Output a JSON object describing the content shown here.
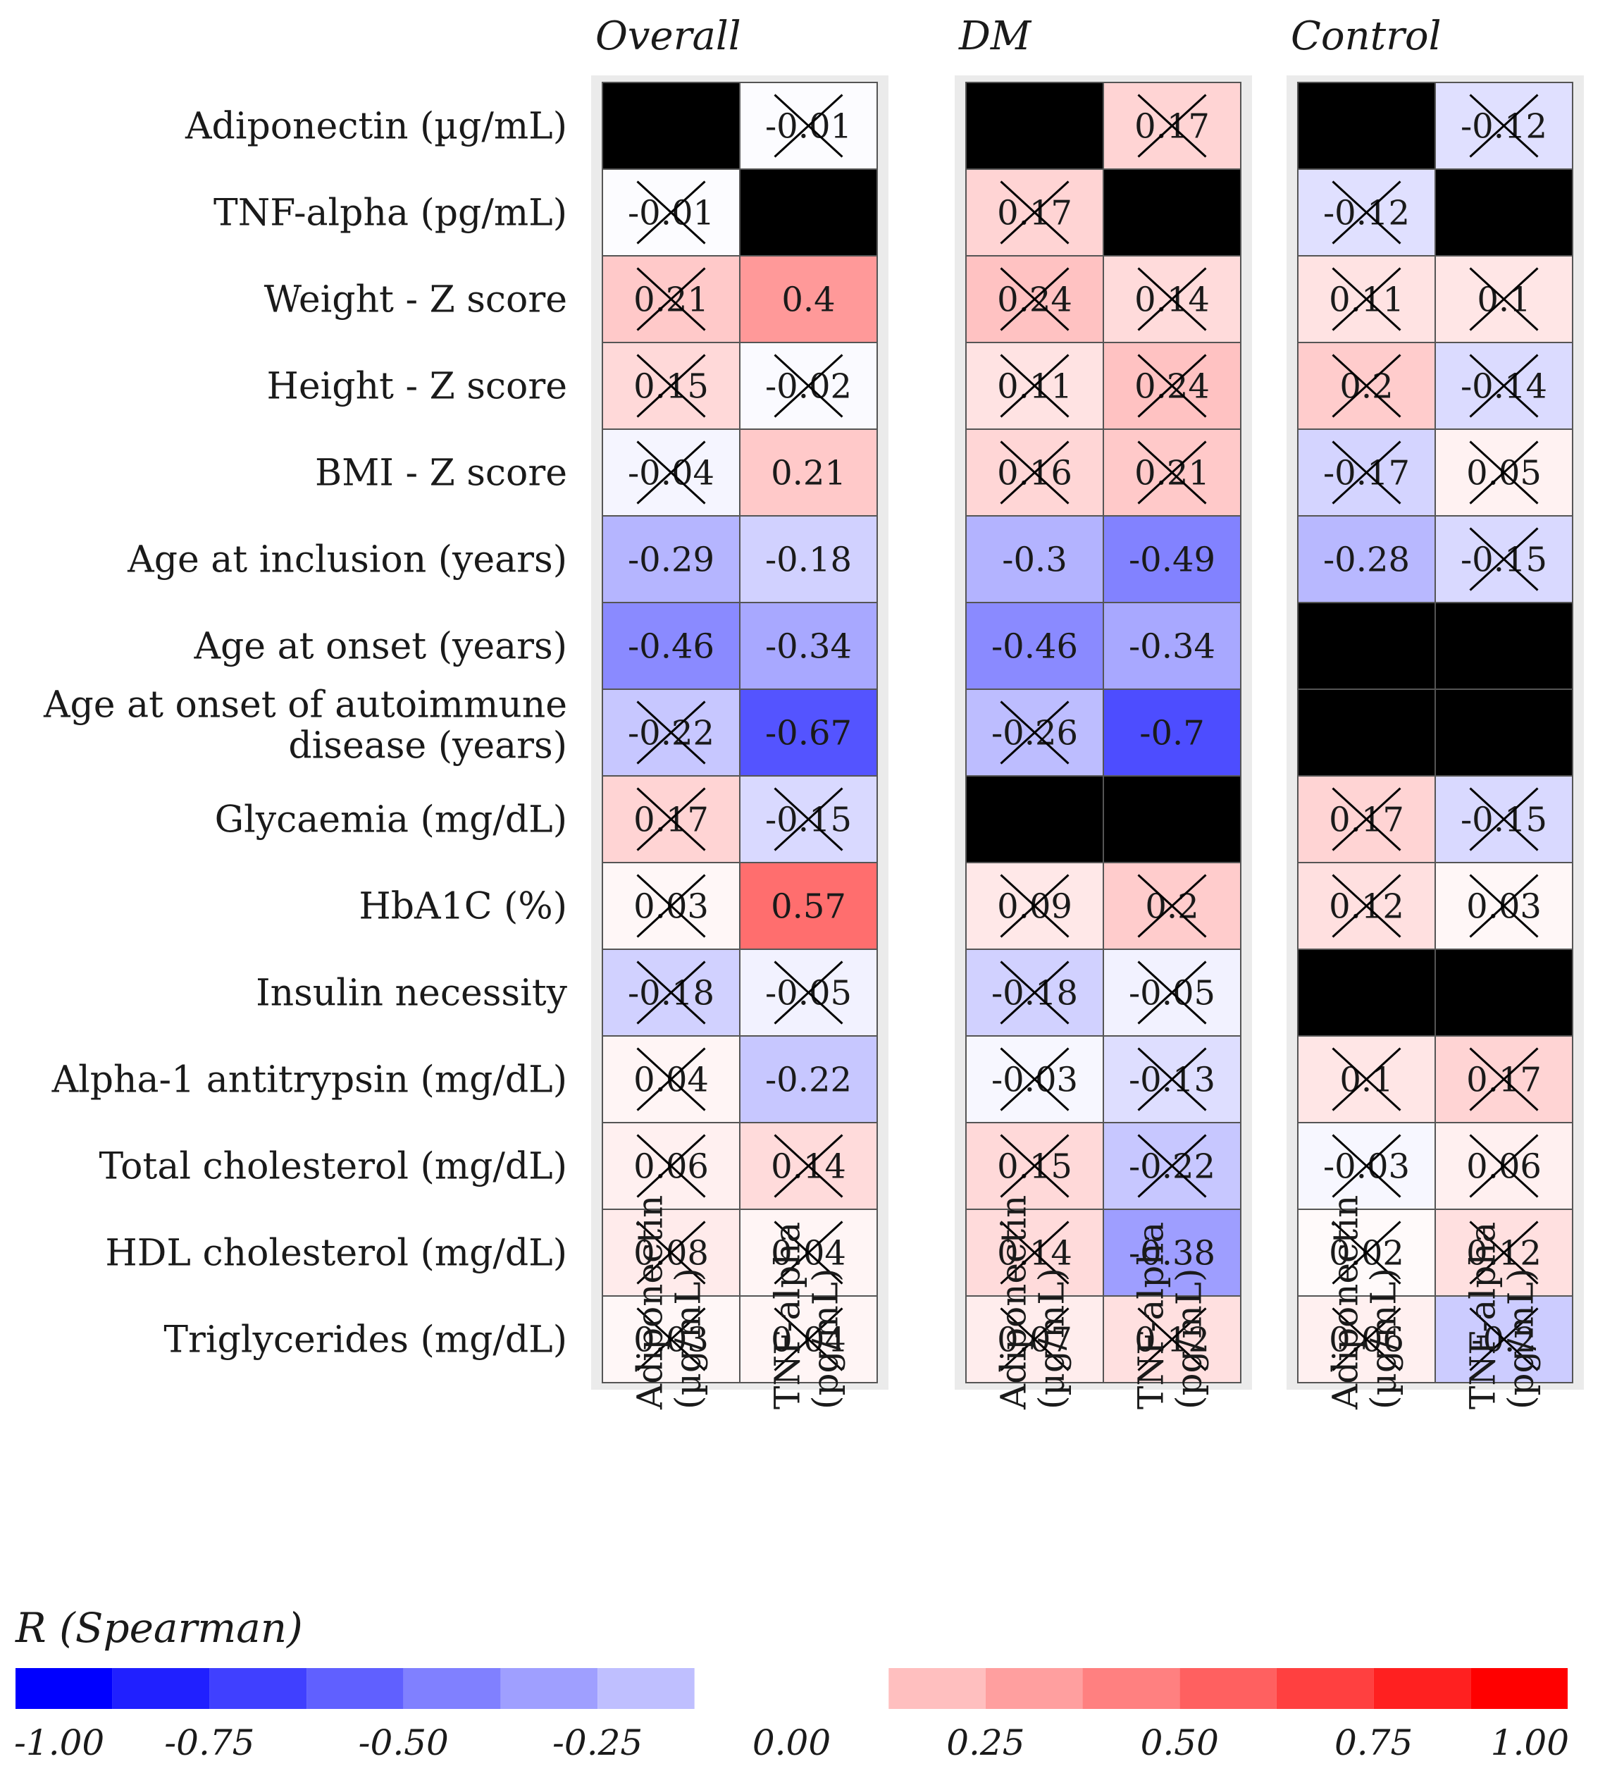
{
  "chart_data": {
    "type": "heatmap",
    "legend_title": "R (Spearman)",
    "legend_ticks": [
      "-1.00",
      "-0.75",
      "-0.50",
      "-0.25",
      "0.00",
      "0.25",
      "0.50",
      "0.75",
      "1.00"
    ],
    "legend_range": [
      -1,
      1
    ],
    "legend_placement": "bottom",
    "color_scale": {
      "negative": "#0000ff",
      "zero": "#ffffff",
      "positive": "#ff0000"
    },
    "missing_color": "#000000",
    "panel_background": "#ebebeb",
    "rows": [
      "Adiponectin (µg/mL)",
      "TNF-alpha (pg/mL)",
      "Weight - Z score",
      "Height - Z score",
      "BMI - Z score",
      "Age at inclusion (years)",
      "Age at onset (years)",
      [
        "Age at onset of autoimmune",
        "disease (years)"
      ],
      "Glycaemia (mg/dL)",
      "HbA1C (%)",
      "Insulin necessity",
      "Alpha-1 antitrypsin (mg/dL)",
      "Total cholesterol (mg/dL)",
      "HDL cholesterol (mg/dL)",
      "Triglycerides (mg/dL)"
    ],
    "columns": [
      [
        "Adiponectin",
        "(µg/mL)"
      ],
      [
        "TNF-alpha",
        "(pg/mL)"
      ]
    ],
    "panels": [
      {
        "name": "Overall",
        "cells": [
          [
            null,
            {
              "r": -0.01,
              "ns": true
            }
          ],
          [
            {
              "r": -0.01,
              "ns": true
            },
            null
          ],
          [
            {
              "r": 0.21,
              "ns": true
            },
            {
              "r": 0.4,
              "ns": false
            }
          ],
          [
            {
              "r": 0.15,
              "ns": true
            },
            {
              "r": -0.02,
              "ns": true
            }
          ],
          [
            {
              "r": -0.04,
              "ns": true
            },
            {
              "r": 0.21,
              "ns": false
            }
          ],
          [
            {
              "r": -0.29,
              "ns": false
            },
            {
              "r": -0.18,
              "ns": false
            }
          ],
          [
            {
              "r": -0.46,
              "ns": false
            },
            {
              "r": -0.34,
              "ns": false
            }
          ],
          [
            {
              "r": -0.22,
              "ns": true
            },
            {
              "r": -0.67,
              "ns": false
            }
          ],
          [
            {
              "r": 0.17,
              "ns": true
            },
            {
              "r": -0.15,
              "ns": true
            }
          ],
          [
            {
              "r": 0.03,
              "ns": true
            },
            {
              "r": 0.57,
              "ns": false
            }
          ],
          [
            {
              "r": -0.18,
              "ns": true
            },
            {
              "r": -0.05,
              "ns": true
            }
          ],
          [
            {
              "r": 0.04,
              "ns": true
            },
            {
              "r": -0.22,
              "ns": false
            }
          ],
          [
            {
              "r": 0.06,
              "ns": true
            },
            {
              "r": 0.14,
              "ns": true
            }
          ],
          [
            {
              "r": 0.08,
              "ns": true
            },
            {
              "r": 0.04,
              "ns": true
            }
          ],
          [
            {
              "r": 0.03,
              "ns": true
            },
            {
              "r": 0.04,
              "ns": true
            }
          ]
        ]
      },
      {
        "name": "DM",
        "cells": [
          [
            null,
            {
              "r": 0.17,
              "ns": true
            }
          ],
          [
            {
              "r": 0.17,
              "ns": true
            },
            null
          ],
          [
            {
              "r": 0.24,
              "ns": true
            },
            {
              "r": 0.14,
              "ns": true
            }
          ],
          [
            {
              "r": 0.11,
              "ns": true
            },
            {
              "r": 0.24,
              "ns": true
            }
          ],
          [
            {
              "r": 0.16,
              "ns": true
            },
            {
              "r": 0.21,
              "ns": true
            }
          ],
          [
            {
              "r": -0.3,
              "ns": false
            },
            {
              "r": -0.49,
              "ns": false
            }
          ],
          [
            {
              "r": -0.46,
              "ns": false
            },
            {
              "r": -0.34,
              "ns": false
            }
          ],
          [
            {
              "r": -0.26,
              "ns": true
            },
            {
              "r": -0.7,
              "ns": false
            }
          ],
          [
            null,
            null
          ],
          [
            {
              "r": 0.09,
              "ns": true
            },
            {
              "r": 0.2,
              "ns": true
            }
          ],
          [
            {
              "r": -0.18,
              "ns": true
            },
            {
              "r": -0.05,
              "ns": true
            }
          ],
          [
            {
              "r": -0.03,
              "ns": true
            },
            {
              "r": -0.13,
              "ns": true
            }
          ],
          [
            {
              "r": 0.15,
              "ns": true
            },
            {
              "r": -0.22,
              "ns": true
            }
          ],
          [
            {
              "r": 0.14,
              "ns": true
            },
            {
              "r": -0.38,
              "ns": false
            }
          ],
          [
            {
              "r": 0.07,
              "ns": true
            },
            {
              "r": 0.12,
              "ns": true
            }
          ]
        ]
      },
      {
        "name": "Control",
        "cells": [
          [
            null,
            {
              "r": -0.12,
              "ns": true
            }
          ],
          [
            {
              "r": -0.12,
              "ns": true
            },
            null
          ],
          [
            {
              "r": 0.11,
              "ns": true
            },
            {
              "r": 0.1,
              "ns": true
            }
          ],
          [
            {
              "r": 0.2,
              "ns": true
            },
            {
              "r": -0.14,
              "ns": true
            }
          ],
          [
            {
              "r": -0.17,
              "ns": true
            },
            {
              "r": 0.05,
              "ns": true
            }
          ],
          [
            {
              "r": -0.28,
              "ns": false
            },
            {
              "r": -0.15,
              "ns": true
            }
          ],
          [
            null,
            null
          ],
          [
            null,
            null
          ],
          [
            {
              "r": 0.17,
              "ns": true
            },
            {
              "r": -0.15,
              "ns": true
            }
          ],
          [
            {
              "r": 0.12,
              "ns": true
            },
            {
              "r": 0.03,
              "ns": true
            }
          ],
          [
            null,
            null
          ],
          [
            {
              "r": 0.1,
              "ns": true
            },
            {
              "r": 0.17,
              "ns": true
            }
          ],
          [
            {
              "r": -0.03,
              "ns": true
            },
            {
              "r": 0.06,
              "ns": true
            }
          ],
          [
            {
              "r": 0.02,
              "ns": true
            },
            {
              "r": 0.12,
              "ns": true
            }
          ],
          [
            {
              "r": 0.06,
              "ns": true
            },
            {
              "r": -0.2,
              "ns": true
            }
          ]
        ]
      }
    ]
  }
}
